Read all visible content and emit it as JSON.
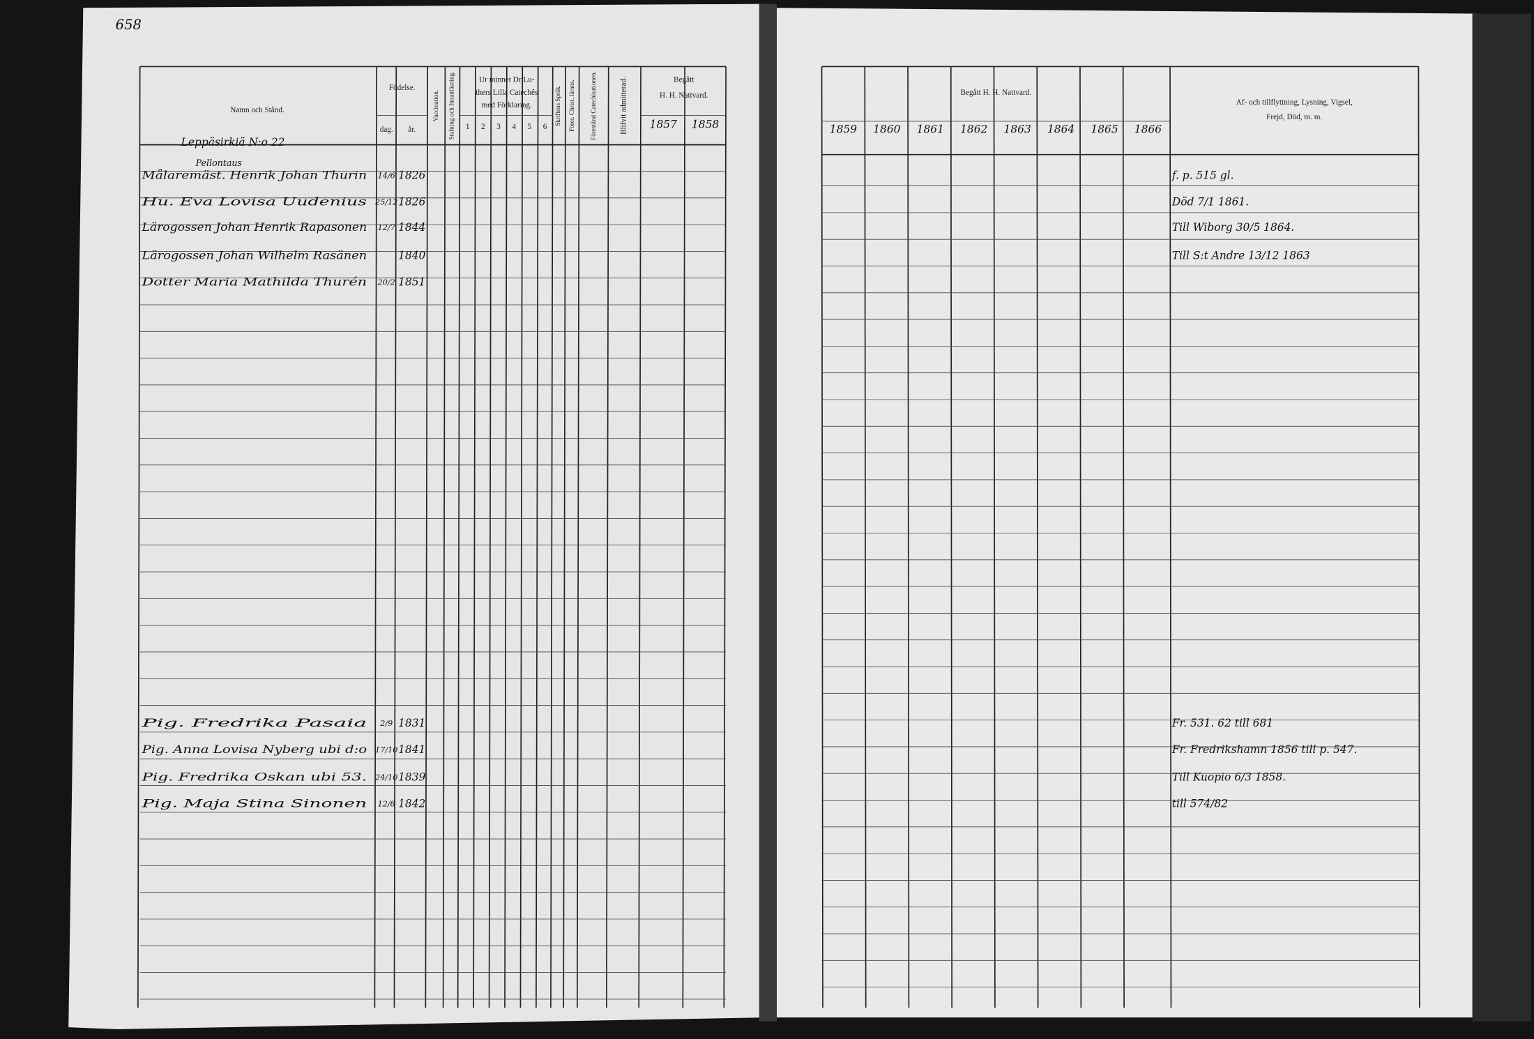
{
  "page_number": "658",
  "left_header": {
    "name_col": "Namn och Stånd.",
    "birth": "Födelse.",
    "birth_day": "dag.",
    "birth_year": "år.",
    "vaccination": "Vaccination.",
    "reading": "Stafning och Innanläsning.",
    "catechism": [
      "Ur minnet Dr Lu-",
      "thers Lilla Catechês",
      "med Förklaring."
    ],
    "cat_nums": [
      "1",
      "2",
      "3",
      "4",
      "5",
      "6"
    ],
    "scripture": "Skriftens Språk.",
    "christ": "Förer. Christ. lärans.",
    "catechisation": "Förestånd Catechisationen.",
    "admitted": "Blifvit admitterad.",
    "communion": [
      "Begått",
      "H. H. Nattvard."
    ],
    "years": [
      "1857",
      "1858"
    ]
  },
  "right_header": {
    "communion": "Begått H. H. Nattvard.",
    "years": [
      "1859",
      "1860",
      "1861",
      "1862",
      "1863",
      "1864",
      "1865",
      "1866"
    ],
    "notes": [
      "Af- och tillflyttning, Lysning, Vigsel,",
      "Frejd, Död, m. m."
    ]
  },
  "household": {
    "farm": "Leppäsirkiä N:o 22",
    "subtitle": "Pellontaus"
  },
  "rows": [
    {
      "name": "Målaremäst. Henrik Johan Thurin",
      "day": "14/6",
      "year": "1826",
      "note": "f. p. 515 gl."
    },
    {
      "name": "Hu. Eva Lovisa Uudenius",
      "day": "25/12",
      "year": "1826",
      "note": "Död 7/1 1861."
    },
    {
      "name": "Lärogossen Johan Henrik Rapasonen",
      "day": "12/7",
      "year": "1844",
      "note": "Till Wiborg 30/5 1864."
    },
    {
      "name": "Lärogossen Johan Wilhelm Rasänen",
      "year": "1840",
      "note": "Till S:t Andre 13/12 1863"
    },
    {
      "name": "Dotter Maria Mathilda Thurén",
      "day": "20/2",
      "year": "1851"
    },
    {
      "name": "Pig. Fredrika Pasaia",
      "day": "2/9",
      "year": "1831",
      "note": "Fr. 531. 62 till 681"
    },
    {
      "name": "Pig. Anna Lovisa Nyberg ubi d:o",
      "day": "17/10",
      "year": "1841",
      "note": "Fr. Fredrikshamn 1856 till p. 547."
    },
    {
      "name": "Pig. Fredrika Oskan ubi 53.",
      "day": "24/10",
      "year": "1839",
      "note": "Till Kuopio 6/3 1858."
    },
    {
      "name": "Pig. Maja Stina Sinonen",
      "day": "12/8",
      "year": "1842",
      "note": "till 574/82"
    }
  ]
}
